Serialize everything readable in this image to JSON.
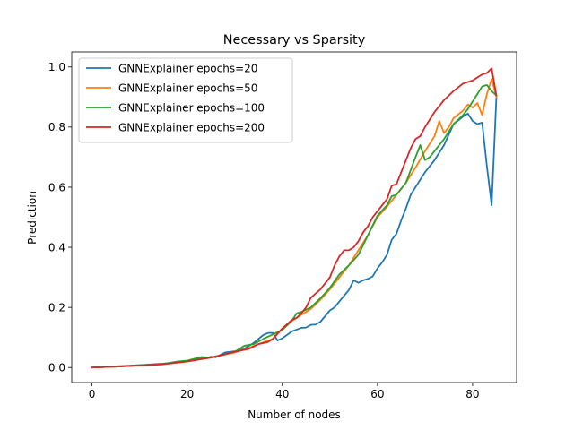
{
  "chart_data": {
    "type": "line",
    "title": "Necessary vs Sparsity",
    "xlabel": "Number of nodes",
    "ylabel": "Prediction",
    "xlim": [
      -4.25,
      89.25
    ],
    "ylim": [
      -0.05,
      1.05
    ],
    "xticks": [
      0,
      20,
      40,
      60,
      80
    ],
    "yticks": [
      0.0,
      0.2,
      0.4,
      0.6,
      0.8,
      1.0
    ],
    "xtick_labels": [
      "0",
      "20",
      "40",
      "60",
      "80"
    ],
    "ytick_labels": [
      "0.0",
      "0.2",
      "0.4",
      "0.6",
      "0.8",
      "1.0"
    ],
    "legend_position": "top-left",
    "grid": false,
    "series": [
      {
        "name": "GNNExplainer epochs=20",
        "color": "#1f77b4",
        "x": [
          0,
          5,
          10,
          15,
          20,
          23,
          24,
          25,
          26,
          28,
          30,
          32,
          34,
          36,
          37,
          38,
          39,
          40,
          42,
          44,
          45,
          46,
          47,
          48,
          50,
          51,
          52,
          54,
          55,
          56,
          57,
          58,
          59,
          60,
          61,
          62,
          63,
          64,
          65,
          66,
          67,
          68,
          69,
          70,
          72,
          74,
          76,
          78,
          79,
          80,
          81,
          82,
          83,
          84,
          85
        ],
        "values": [
          0.0,
          0.004,
          0.008,
          0.013,
          0.022,
          0.033,
          0.03,
          0.036,
          0.034,
          0.05,
          0.054,
          0.062,
          0.082,
          0.108,
          0.115,
          0.115,
          0.09,
          0.097,
          0.12,
          0.132,
          0.133,
          0.142,
          0.143,
          0.152,
          0.19,
          0.2,
          0.22,
          0.258,
          0.29,
          0.282,
          0.29,
          0.295,
          0.303,
          0.33,
          0.35,
          0.375,
          0.425,
          0.445,
          0.49,
          0.53,
          0.575,
          0.6,
          0.625,
          0.65,
          0.69,
          0.74,
          0.81,
          0.835,
          0.845,
          0.82,
          0.81,
          0.815,
          0.67,
          0.54,
          0.9
        ]
      },
      {
        "name": "GNNExplainer epochs=50",
        "color": "#ff7f0e",
        "x": [
          0,
          5,
          10,
          15,
          20,
          25,
          30,
          33,
          35,
          38,
          40,
          42,
          44,
          46,
          48,
          50,
          52,
          54,
          56,
          58,
          60,
          62,
          63,
          64,
          66,
          68,
          70,
          71,
          72,
          73,
          74,
          75,
          76,
          78,
          79,
          80,
          81,
          82,
          83,
          84,
          85
        ],
        "values": [
          0.0,
          0.003,
          0.007,
          0.011,
          0.02,
          0.033,
          0.05,
          0.065,
          0.078,
          0.095,
          0.13,
          0.155,
          0.175,
          0.195,
          0.225,
          0.26,
          0.3,
          0.34,
          0.39,
          0.44,
          0.5,
          0.535,
          0.555,
          0.575,
          0.615,
          0.665,
          0.72,
          0.745,
          0.77,
          0.82,
          0.78,
          0.8,
          0.83,
          0.855,
          0.875,
          0.865,
          0.88,
          0.84,
          0.91,
          0.96,
          0.9
        ]
      },
      {
        "name": "GNNExplainer epochs=100",
        "color": "#2ca02c",
        "x": [
          0,
          5,
          10,
          15,
          18,
          20,
          23,
          25,
          27,
          30,
          32,
          34,
          36,
          38,
          40,
          42,
          43,
          44,
          46,
          48,
          50,
          52,
          54,
          56,
          58,
          60,
          62,
          63,
          64,
          66,
          68,
          69,
          70,
          71,
          72,
          74,
          76,
          78,
          79,
          80,
          81,
          82,
          83,
          84,
          85
        ],
        "values": [
          0.0,
          0.003,
          0.007,
          0.012,
          0.02,
          0.023,
          0.035,
          0.033,
          0.04,
          0.052,
          0.072,
          0.078,
          0.095,
          0.11,
          0.125,
          0.155,
          0.18,
          0.185,
          0.2,
          0.23,
          0.265,
          0.31,
          0.34,
          0.375,
          0.44,
          0.505,
          0.54,
          0.57,
          0.575,
          0.615,
          0.7,
          0.74,
          0.69,
          0.7,
          0.72,
          0.76,
          0.81,
          0.84,
          0.86,
          0.885,
          0.91,
          0.935,
          0.94,
          0.92,
          0.905
        ]
      },
      {
        "name": "GNNExplainer epochs=200",
        "color": "#d62728",
        "x": [
          0,
          5,
          10,
          15,
          20,
          25,
          30,
          33,
          35,
          37,
          38,
          40,
          42,
          43,
          44,
          45,
          46,
          48,
          50,
          51,
          52,
          53,
          54,
          55,
          56,
          57,
          58,
          59,
          60,
          62,
          63,
          64,
          65,
          66,
          67,
          68,
          69,
          70,
          72,
          74,
          76,
          78,
          80,
          82,
          83,
          84,
          85
        ],
        "values": [
          0.0,
          0.003,
          0.007,
          0.011,
          0.02,
          0.033,
          0.052,
          0.062,
          0.078,
          0.085,
          0.095,
          0.13,
          0.158,
          0.165,
          0.18,
          0.2,
          0.232,
          0.26,
          0.3,
          0.34,
          0.37,
          0.39,
          0.39,
          0.4,
          0.42,
          0.45,
          0.47,
          0.5,
          0.52,
          0.56,
          0.605,
          0.61,
          0.65,
          0.69,
          0.73,
          0.76,
          0.77,
          0.8,
          0.85,
          0.89,
          0.92,
          0.945,
          0.955,
          0.975,
          0.98,
          0.995,
          0.905
        ]
      }
    ]
  }
}
